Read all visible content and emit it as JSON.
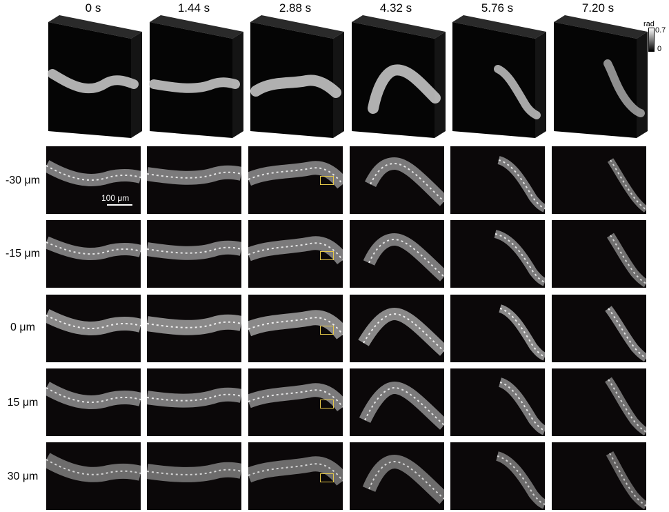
{
  "time_labels": [
    "0 s",
    "1.44 s",
    "2.88 s",
    "4.32 s",
    "5.76 s",
    "7.20 s"
  ],
  "depth_labels": [
    "-30 μm",
    "-15 μm",
    "0 μm",
    "15 μm",
    "30 μm"
  ],
  "colorbar": {
    "title": "rad",
    "max_label": "0.7",
    "min_label": "0",
    "colormap": "gray"
  },
  "scale_bar_label": "100 μm",
  "colors": {
    "background": "#ffffff",
    "panel": "#0b0809",
    "roi_box": "#e6c84a",
    "worm": "#d8d8d8"
  },
  "image_subject": "time-lapse phase images of a crawling worm at five focal depths"
}
